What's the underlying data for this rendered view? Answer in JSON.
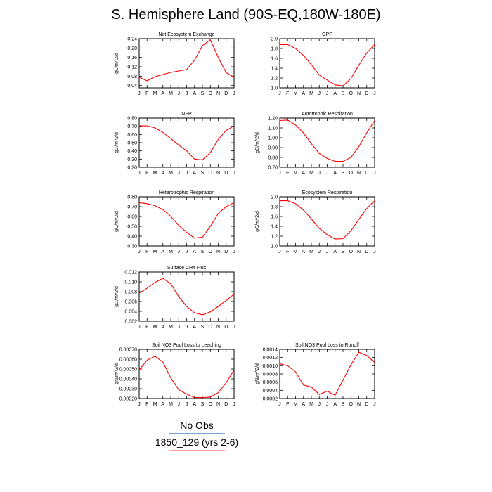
{
  "title": "S. Hemisphere Land (90S-EQ,180W-180E)",
  "months": [
    "J",
    "F",
    "M",
    "A",
    "M",
    "J",
    "J",
    "A",
    "S",
    "O",
    "N",
    "D",
    "J"
  ],
  "legend": [
    {
      "label": "No Obs",
      "color": "#7f9fcf"
    },
    {
      "label": "1850_129 (yrs 2-6)",
      "color": "#ff9999"
    }
  ],
  "line_color": "#ff0000",
  "chart_data": [
    {
      "type": "line",
      "title": "Net Ecosystem Exchange",
      "ylabel": "gC/m^2/d",
      "ylim": [
        0.03,
        0.24
      ],
      "yticks": [
        0.04,
        0.08,
        0.12,
        0.16,
        0.2,
        0.24
      ],
      "ytick_labels": [
        "0.04",
        "0.08",
        "0.12",
        "0.16",
        "0.20",
        "0.24"
      ],
      "series": [
        {
          "values": [
            0.075,
            0.06,
            0.078,
            0.087,
            0.096,
            0.102,
            0.108,
            0.148,
            0.21,
            0.235,
            0.16,
            0.095,
            0.075
          ]
        }
      ]
    },
    {
      "type": "line",
      "title": "GPP",
      "ylabel": "",
      "ylim": [
        1.0,
        2.0
      ],
      "yticks": [
        1.0,
        1.2,
        1.4,
        1.6,
        1.8,
        2.0
      ],
      "ytick_labels": [
        "1.0",
        "1.2",
        "1.4",
        "1.6",
        "1.8",
        "2.0"
      ],
      "series": [
        {
          "values": [
            1.88,
            1.88,
            1.8,
            1.66,
            1.47,
            1.26,
            1.16,
            1.06,
            1.04,
            1.19,
            1.46,
            1.71,
            1.88
          ]
        }
      ]
    },
    {
      "type": "line",
      "title": "NPP",
      "ylabel": "gC/m^2/d",
      "ylim": [
        0.2,
        0.8
      ],
      "yticks": [
        0.2,
        0.3,
        0.4,
        0.5,
        0.6,
        0.7,
        0.8
      ],
      "ytick_labels": [
        "0.20",
        "0.30",
        "0.40",
        "0.50",
        "0.60",
        "0.70",
        "0.80"
      ],
      "series": [
        {
          "values": [
            0.705,
            0.705,
            0.68,
            0.625,
            0.55,
            0.47,
            0.4,
            0.3,
            0.29,
            0.38,
            0.54,
            0.65,
            0.705
          ]
        }
      ]
    },
    {
      "type": "line",
      "title": "Autotrophic Respiration",
      "ylabel": "gC/m^2/d",
      "ylim": [
        0.7,
        1.2
      ],
      "yticks": [
        0.7,
        0.8,
        0.9,
        1.0,
        1.1,
        1.2
      ],
      "ytick_labels": [
        "0.70",
        "0.80",
        "0.90",
        "1.00",
        "1.10",
        "1.20"
      ],
      "series": [
        {
          "values": [
            1.175,
            1.18,
            1.13,
            1.05,
            0.94,
            0.84,
            0.79,
            0.76,
            0.76,
            0.8,
            0.91,
            1.05,
            1.175
          ]
        }
      ]
    },
    {
      "type": "line",
      "title": "Heterotrophic Respiration",
      "ylabel": "gC/m^2/d",
      "ylim": [
        0.3,
        0.8
      ],
      "yticks": [
        0.3,
        0.4,
        0.5,
        0.6,
        0.7,
        0.8
      ],
      "ytick_labels": [
        "0.30",
        "0.40",
        "0.50",
        "0.60",
        "0.70",
        "0.80"
      ],
      "series": [
        {
          "values": [
            0.74,
            0.73,
            0.71,
            0.67,
            0.6,
            0.51,
            0.44,
            0.38,
            0.39,
            0.5,
            0.63,
            0.7,
            0.74
          ]
        }
      ]
    },
    {
      "type": "line",
      "title": "Ecosystem Respiration",
      "ylabel": "gC/m^2/d",
      "ylim": [
        1.0,
        2.0
      ],
      "yticks": [
        1.0,
        1.2,
        1.4,
        1.6,
        1.8,
        2.0
      ],
      "ytick_labels": [
        "1.0",
        "1.2",
        "1.4",
        "1.6",
        "1.8",
        "2.0"
      ],
      "series": [
        {
          "values": [
            1.92,
            1.92,
            1.86,
            1.73,
            1.55,
            1.36,
            1.23,
            1.14,
            1.15,
            1.31,
            1.54,
            1.76,
            1.92
          ]
        }
      ]
    },
    {
      "type": "line",
      "title": "Surface CH4 Flux",
      "ylabel": "gC/m^2/d",
      "ylim": [
        0.002,
        0.012
      ],
      "yticks": [
        0.002,
        0.004,
        0.006,
        0.008,
        0.01,
        0.012
      ],
      "ytick_labels": [
        "0.002",
        "0.004",
        "0.006",
        "0.008",
        "0.010",
        "0.012"
      ],
      "series": [
        {
          "values": [
            0.0077,
            0.0087,
            0.0099,
            0.0107,
            0.0096,
            0.007,
            0.005,
            0.0037,
            0.0033,
            0.0039,
            0.005,
            0.0062,
            0.0075
          ]
        }
      ]
    },
    {
      "type": "line",
      "title": "Soil NO3 Pool Loss to Leaching",
      "ylabel": "gN/m^2/d",
      "ylim": [
        0.0002,
        0.0007
      ],
      "yticks": [
        0.0002,
        0.0003,
        0.0004,
        0.0005,
        0.0006,
        0.0007
      ],
      "ytick_labels": [
        "0.00020",
        "0.00030",
        "0.00040",
        "0.00050",
        "0.00060",
        "0.00070"
      ],
      "series": [
        {
          "values": [
            0.00049,
            0.00059,
            0.00063,
            0.00057,
            0.00041,
            0.00029,
            0.000245,
            0.00021,
            0.00021,
            0.000215,
            0.00026,
            0.00036,
            0.00049
          ]
        }
      ]
    },
    {
      "type": "line",
      "title": "Soil NO3 Pool Loss to Runoff",
      "ylabel": "gN/m^2/d",
      "ylim": [
        0.0002,
        0.0014
      ],
      "yticks": [
        0.0002,
        0.0004,
        0.0006,
        0.0008,
        0.001,
        0.0012,
        0.0014
      ],
      "ytick_labels": [
        "0.0002",
        "0.0004",
        "0.0006",
        "0.0008",
        "0.0010",
        "0.0012",
        "0.0014"
      ],
      "series": [
        {
          "values": [
            0.00105,
            0.001,
            0.00085,
            0.00053,
            0.00048,
            0.0003,
            0.00038,
            0.00028,
            0.00065,
            0.00102,
            0.00133,
            0.00125,
            0.00108
          ]
        }
      ]
    }
  ]
}
